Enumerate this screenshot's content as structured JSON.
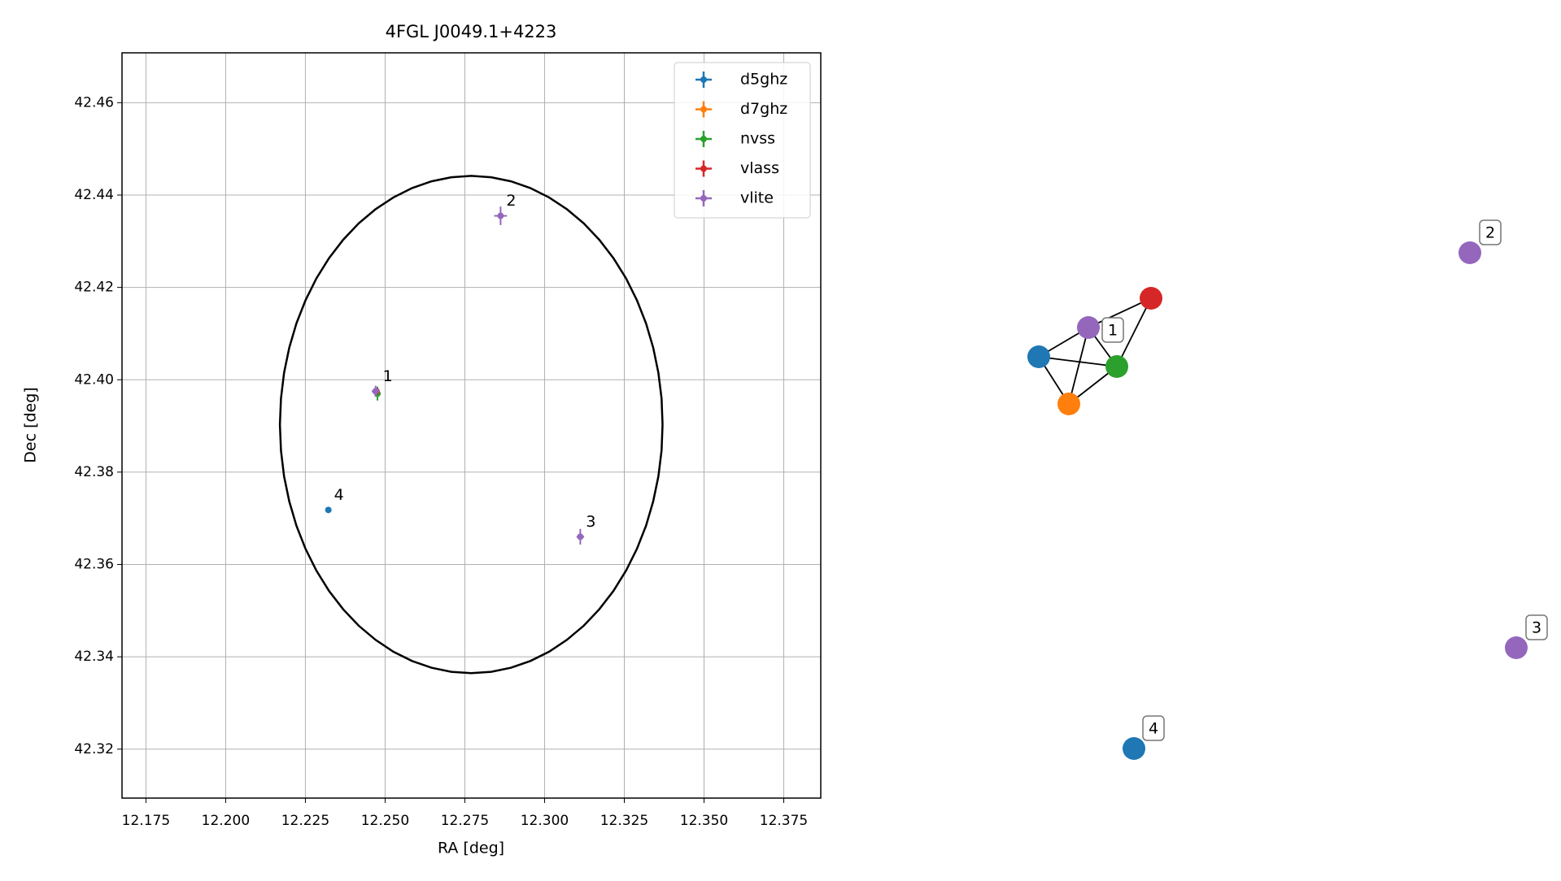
{
  "chart_data": {
    "type": "scatter",
    "title": "4FGL J0049.1+4223",
    "x_label": "RA [deg]",
    "y_label": "Dec [deg]",
    "xlim": [
      12.1675,
      12.3866
    ],
    "ylim": [
      42.3094,
      42.4708
    ],
    "xticks": [
      {
        "value": 12.175,
        "label": "12.175"
      },
      {
        "value": 12.2,
        "label": "12.200"
      },
      {
        "value": 12.225,
        "label": "12.225"
      },
      {
        "value": 12.25,
        "label": "12.250"
      },
      {
        "value": 12.275,
        "label": "12.275"
      },
      {
        "value": 12.3,
        "label": "12.300"
      },
      {
        "value": 12.325,
        "label": "12.325"
      },
      {
        "value": 12.35,
        "label": "12.350"
      },
      {
        "value": 12.375,
        "label": "12.375"
      }
    ],
    "yticks": [
      {
        "value": 42.32,
        "label": "42.32"
      },
      {
        "value": 42.34,
        "label": "42.34"
      },
      {
        "value": 42.36,
        "label": "42.36"
      },
      {
        "value": 42.38,
        "label": "42.38"
      },
      {
        "value": 42.4,
        "label": "42.40"
      },
      {
        "value": 42.42,
        "label": "42.42"
      },
      {
        "value": 42.44,
        "label": "42.44"
      },
      {
        "value": 42.46,
        "label": "42.46"
      }
    ],
    "grid": true,
    "legend": "upper right",
    "ellipse": {
      "center": [
        12.277,
        42.3903
      ],
      "width": 0.12,
      "height": 0.1077,
      "color": "#000000"
    },
    "series": [
      {
        "name": "d5ghz",
        "color": "#1f77b4",
        "x": [
          12.2472,
          12.2322
        ],
        "y": [
          42.3975,
          42.3718
        ],
        "xerr": [
          0.0005,
          0.0003
        ],
        "yerr": [
          0.0005,
          0.0003
        ]
      },
      {
        "name": "d7ghz",
        "color": "#ff7f0e",
        "x": [
          12.2474
        ],
        "y": [
          42.3972
        ],
        "xerr": [
          0.0005
        ],
        "yerr": [
          0.0005
        ]
      },
      {
        "name": "nvss",
        "color": "#2ca02c",
        "x": [
          12.2476
        ],
        "y": [
          42.397
        ],
        "xerr": [
          0.0008
        ],
        "yerr": [
          0.0015
        ]
      },
      {
        "name": "vlass",
        "color": "#d62728",
        "x": [
          12.2473
        ],
        "y": [
          42.3975
        ],
        "xerr": [
          0.0003
        ],
        "yerr": [
          0.0003
        ]
      },
      {
        "name": "vlite",
        "color": "#9467bd",
        "x": [
          12.247,
          12.2862,
          12.3112
        ],
        "y": [
          42.3975,
          42.4355,
          42.366
        ],
        "xerr": [
          0.0012,
          0.002,
          0.0012
        ],
        "yerr": [
          0.0012,
          0.002,
          0.0017
        ]
      }
    ],
    "annotations": [
      {
        "text": "1",
        "x": 12.2475,
        "y": 42.3975
      },
      {
        "text": "2",
        "x": 12.2862,
        "y": 42.4355
      },
      {
        "text": "3",
        "x": 12.3112,
        "y": 42.366
      },
      {
        "text": "4",
        "x": 12.2322,
        "y": 42.3718
      }
    ]
  },
  "graph": {
    "labels": [
      "1",
      "2",
      "3",
      "4"
    ]
  }
}
